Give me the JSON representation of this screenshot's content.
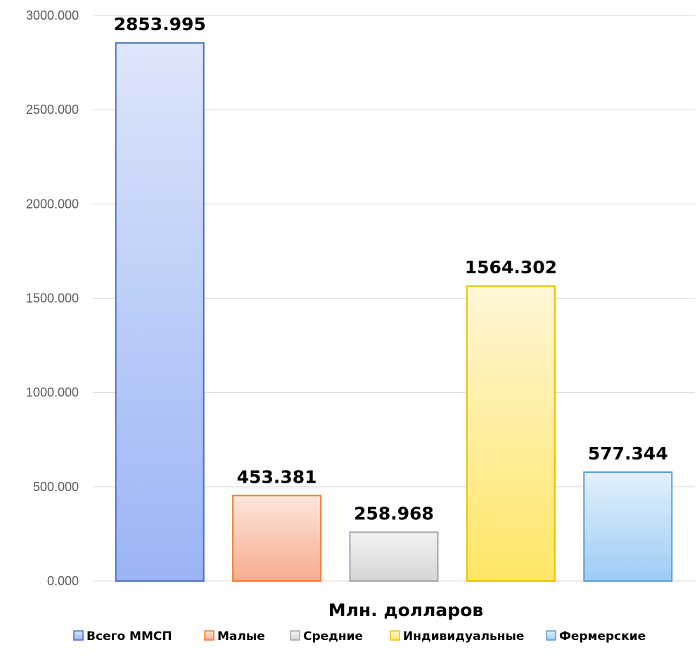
{
  "chart_data": {
    "type": "bar",
    "title": "",
    "xlabel": "Млн. долларов",
    "ylabel": "",
    "ylim": [
      0,
      3000
    ],
    "yticks": [
      "0.000",
      "500.000",
      "1000.000",
      "1500.000",
      "2000.000",
      "2500.000",
      "3000.000"
    ],
    "grid": true,
    "legend_position": "bottom",
    "series": [
      {
        "name": "Всего ММСП",
        "value": 2853.995,
        "label": "2853.995",
        "color_top": "#dde6fb",
        "color_bottom": "#9ab4f5",
        "border": "#4a6fc4"
      },
      {
        "name": "Малые",
        "value": 453.381,
        "label": "453.381",
        "color_top": "#fde6dd",
        "color_bottom": "#f7ab8c",
        "border": "#ed7d31"
      },
      {
        "name": "Средние",
        "value": 258.968,
        "label": "258.968",
        "color_top": "#f4f4f4",
        "color_bottom": "#d4d4d4",
        "border": "#a5a5a5"
      },
      {
        "name": "Индивидуальные",
        "value": 1564.302,
        "label": "1564.302",
        "color_top": "#fff6d6",
        "color_bottom": "#ffe666",
        "border": "#e8c300"
      },
      {
        "name": "Фермерские",
        "value": 577.344,
        "label": "577.344",
        "color_top": "#e3f0fc",
        "color_bottom": "#9ccdf5",
        "border": "#5b9bd5"
      }
    ]
  }
}
